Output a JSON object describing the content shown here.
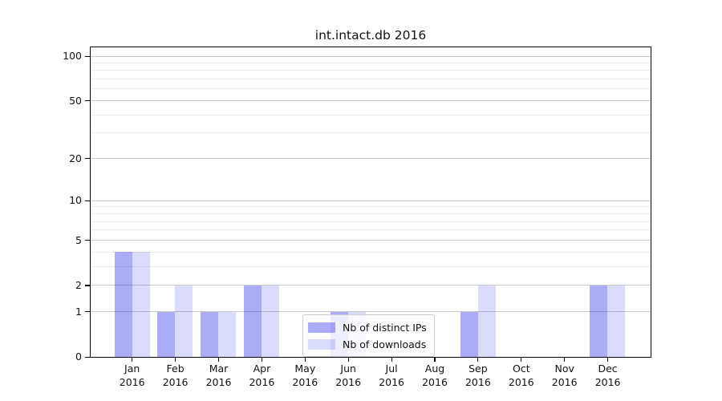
{
  "chart_data": {
    "type": "bar",
    "title": "int.intact.db 2016",
    "categories": [
      "Jan",
      "Feb",
      "Mar",
      "Apr",
      "May",
      "Jun",
      "Jul",
      "Aug",
      "Sep",
      "Oct",
      "Nov",
      "Dec"
    ],
    "year_label": "2016",
    "series": [
      {
        "name": "Nb of distinct IPs",
        "values": [
          4,
          1,
          1,
          2,
          0,
          1,
          0,
          0,
          1,
          0,
          0,
          2
        ],
        "color": "rgba(13,13,230,0.35)",
        "color_on_white": "#aaaaf6"
      },
      {
        "name": "Nb of downloads",
        "values": [
          4,
          2,
          1,
          2,
          0,
          1,
          0,
          0,
          2,
          0,
          0,
          2
        ],
        "color": "rgba(13,13,230,0.15)",
        "color_on_white": "#dbdbfa"
      }
    ],
    "yscale": "log1p",
    "yticks": [
      0,
      1,
      2,
      5,
      10,
      20,
      50,
      100
    ],
    "yminorticks": [
      3,
      4,
      6,
      7,
      8,
      9,
      30,
      40,
      60,
      70,
      80,
      90
    ],
    "ylim": [
      0,
      115
    ],
    "xlabel": "",
    "ylabel": "",
    "grid": true,
    "legend_position": "lower-center"
  },
  "colors": {
    "grid_major": "#c9c9c9",
    "grid_minor": "#ececec",
    "axis": "#000000",
    "text": "#111111",
    "legend_border": "#cccccc",
    "legend_bg": "rgba(255,255,255,0.8)"
  }
}
